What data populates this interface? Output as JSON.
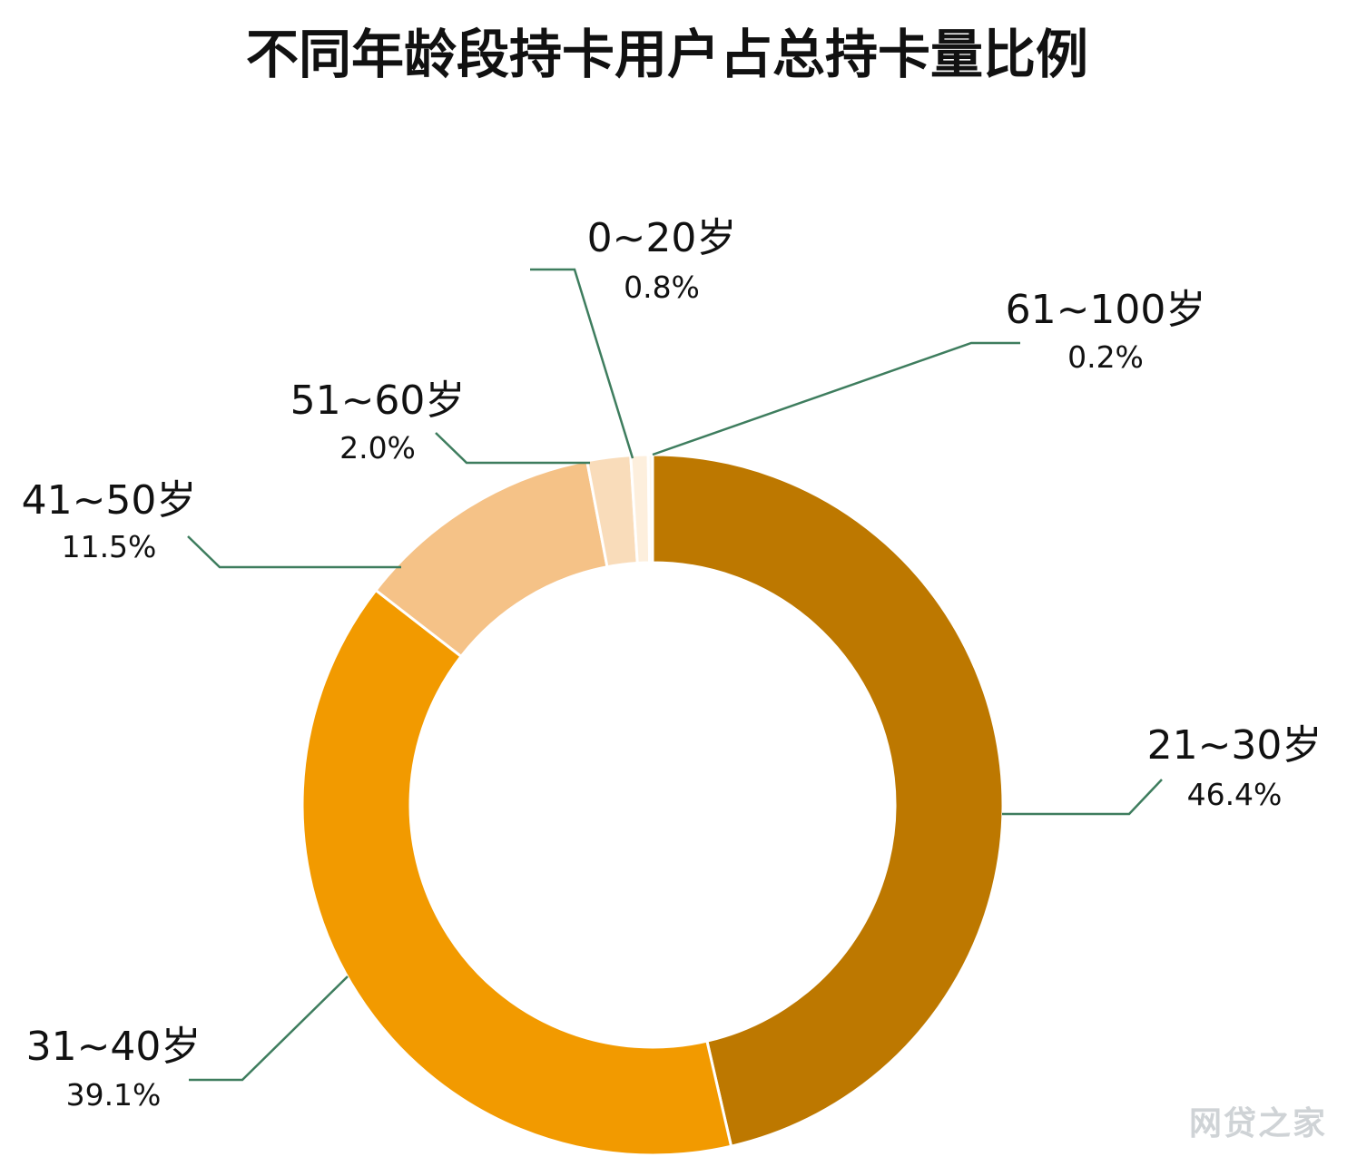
{
  "chart_data": {
    "type": "pie",
    "title": "不同年龄段持卡用户占总持卡量比例",
    "donut": true,
    "start": "top",
    "direction": "clockwise",
    "slices": [
      {
        "label": "21~30岁",
        "value": 46.4,
        "value_label": "46.4%",
        "color": "#BD7800"
      },
      {
        "label": "31~40岁",
        "value": 39.1,
        "value_label": "39.1%",
        "color": "#F29A00"
      },
      {
        "label": "41~50岁",
        "value": 11.5,
        "value_label": "11.5%",
        "color": "#F5C287"
      },
      {
        "label": "51~60岁",
        "value": 2.0,
        "value_label": "2.0%",
        "color": "#F9DCBA"
      },
      {
        "label": "0~20岁",
        "value": 0.8,
        "value_label": "0.8%",
        "color": "#FDEFDD"
      },
      {
        "label": "61~100岁",
        "value": 0.2,
        "value_label": "0.2%",
        "color": "#FFF8EE"
      }
    ],
    "leader_line_color": "#3E7D5E"
  },
  "watermark": {
    "text": "网贷之家"
  }
}
